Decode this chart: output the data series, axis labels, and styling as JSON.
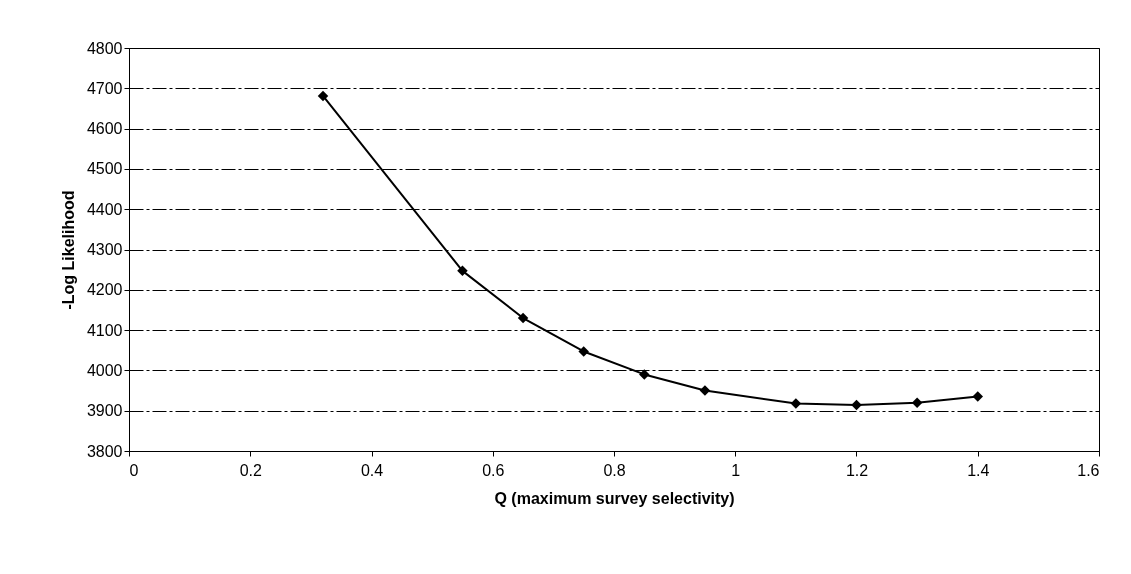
{
  "chart_data": {
    "type": "line",
    "xlabel": "Q (maximum survey selectivity)",
    "ylabel": "-Log Likelihood",
    "x": [
      0.32,
      0.55,
      0.65,
      0.75,
      0.85,
      0.95,
      1.1,
      1.2,
      1.3,
      1.4
    ],
    "series": [
      {
        "color": "#000000",
        "values": [
          4681,
          4247,
          4130,
          4047,
          3990,
          3950,
          3918,
          3914,
          3920,
          3935
        ]
      }
    ],
    "xlim": [
      0,
      1.6
    ],
    "xticks": [
      0,
      0.2,
      0.4,
      0.6,
      0.8,
      1,
      1.2,
      1.4,
      1.6
    ],
    "ylim": [
      3800,
      4800
    ],
    "yticks": [
      3800,
      3900,
      4000,
      4100,
      4200,
      4300,
      4400,
      4500,
      4600,
      4700,
      4800
    ],
    "grid": "y",
    "marker": "diamond",
    "line_style": "solid"
  }
}
